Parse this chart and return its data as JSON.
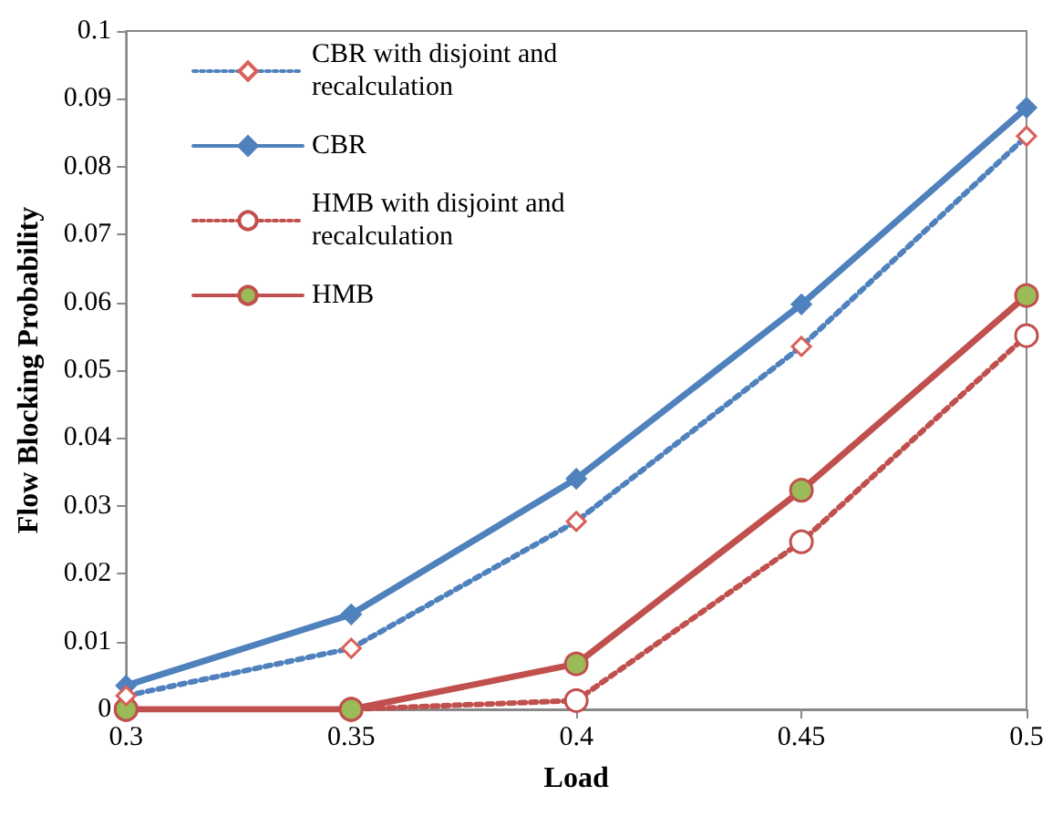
{
  "chart_data": {
    "type": "line",
    "xlabel": "Load",
    "ylabel": "Flow Blocking Probability",
    "x": [
      0.3,
      0.35,
      0.4,
      0.45,
      0.5
    ],
    "series": [
      {
        "name": "CBR with disjoint and recalculation",
        "color": "#4f81bd",
        "line_style": "dotted",
        "marker": "diamond",
        "values": [
          0.002,
          0.009,
          0.0277,
          0.0535,
          0.0845
        ]
      },
      {
        "name": "CBR",
        "color": "#4f81bd",
        "line_style": "solid",
        "marker": "diamond",
        "values": [
          0.0035,
          0.014,
          0.034,
          0.0597,
          0.0887
        ]
      },
      {
        "name": "HMB with disjoint and recalculation",
        "color": "#c0504d",
        "line_style": "dotted",
        "marker": "circle",
        "values": [
          0,
          0,
          0.0013,
          0.0247,
          0.0551
        ]
      },
      {
        "name": "HMB",
        "color": "#c0504d",
        "line_style": "solid",
        "marker": "circle",
        "values": [
          0,
          0,
          0.0067,
          0.0323,
          0.061
        ]
      }
    ],
    "xlim": [
      0.3,
      0.5
    ],
    "xticks": [
      0.3,
      0.35,
      0.4,
      0.45,
      0.5
    ],
    "ylim": [
      0,
      0.1
    ],
    "yticks": [
      0,
      0.01,
      0.02,
      0.03,
      0.04,
      0.05,
      0.06,
      0.07,
      0.08,
      0.09,
      0.1
    ],
    "grid": false,
    "legend": "top left"
  }
}
